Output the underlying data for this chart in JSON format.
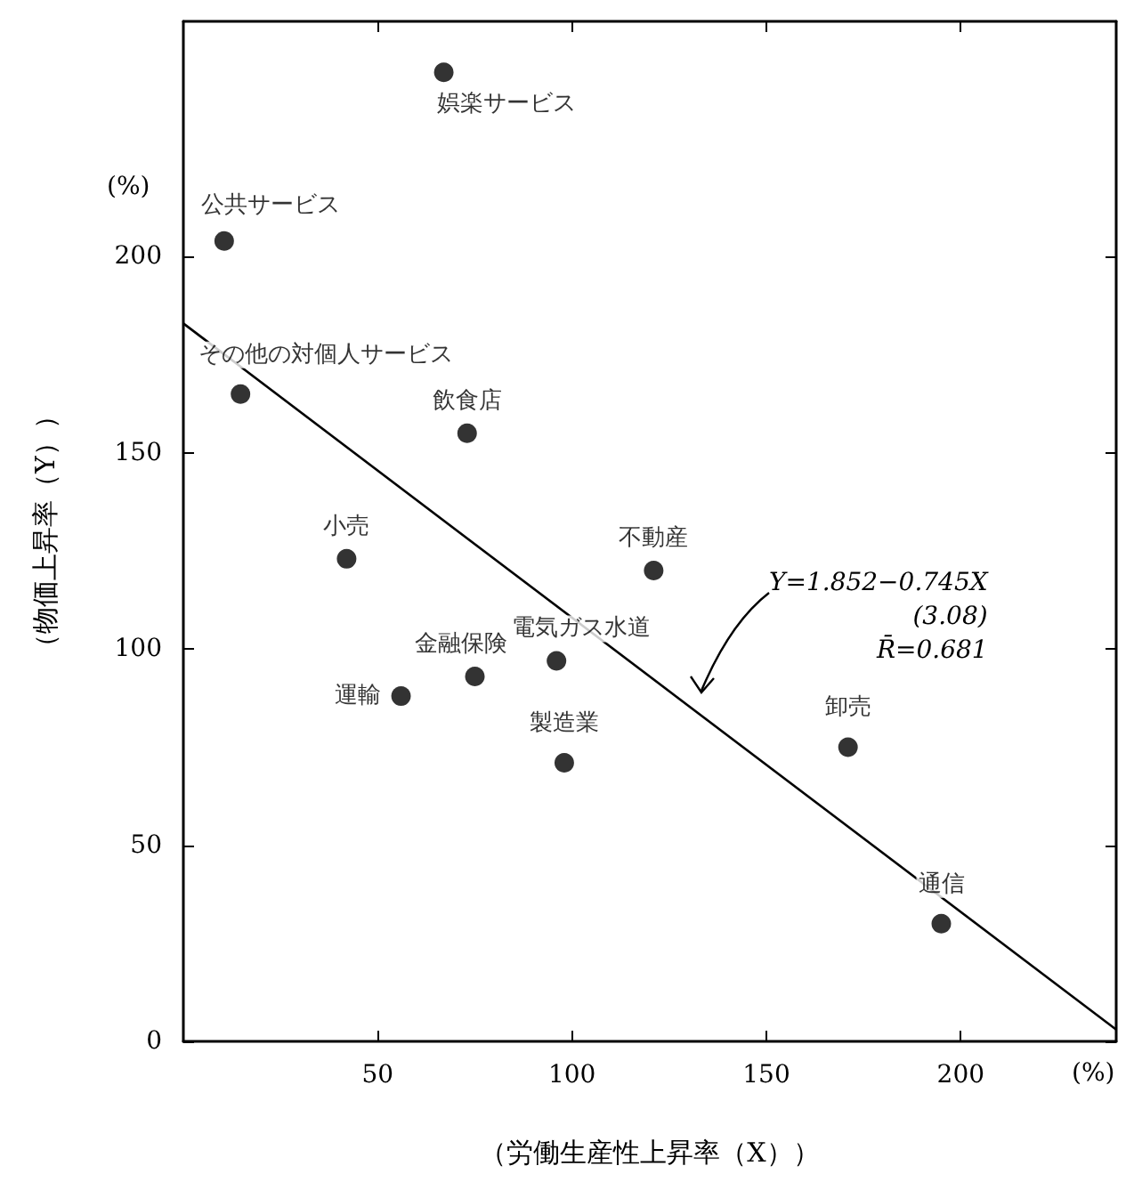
{
  "chart_data": {
    "type": "scatter",
    "xlabel": "（労働生産性上昇率（X））",
    "ylabel": "（物価上昇率（Y））",
    "annotations": [
      "(%)",
      "(%)",
      "Y=1.852−0.745X\n(3.08)\nR̄=0.681"
    ],
    "xlim": [
      0,
      240
    ],
    "xticks": [
      50,
      100,
      150,
      200
    ],
    "ylim": [
      0,
      260
    ],
    "yticks": [
      0,
      50,
      100,
      150,
      200
    ],
    "grid": false,
    "marker": "circle",
    "series": [
      {
        "color": "#000000",
        "x": [
          67,
          10.5,
          14.7,
          73,
          42,
          121,
          96,
          75,
          56,
          98,
          171,
          195
        ],
        "values": [
          247,
          204,
          165,
          155,
          123,
          120,
          97,
          93,
          88,
          71,
          75,
          30
        ],
        "value_labels": [
          "娯楽サービス",
          "公共サービス",
          "その他の対個人サービス",
          "飲食店",
          "小売",
          "不動産",
          "電気ガス水道",
          "金融保険",
          "運輸",
          "製造業",
          "卸売",
          "通信"
        ]
      },
      {
        "type": "line",
        "color": "#000000",
        "x": [
          0,
          240
        ],
        "values": [
          183,
          3
        ],
        "marker": "none",
        "line_style": "solid"
      }
    ]
  }
}
